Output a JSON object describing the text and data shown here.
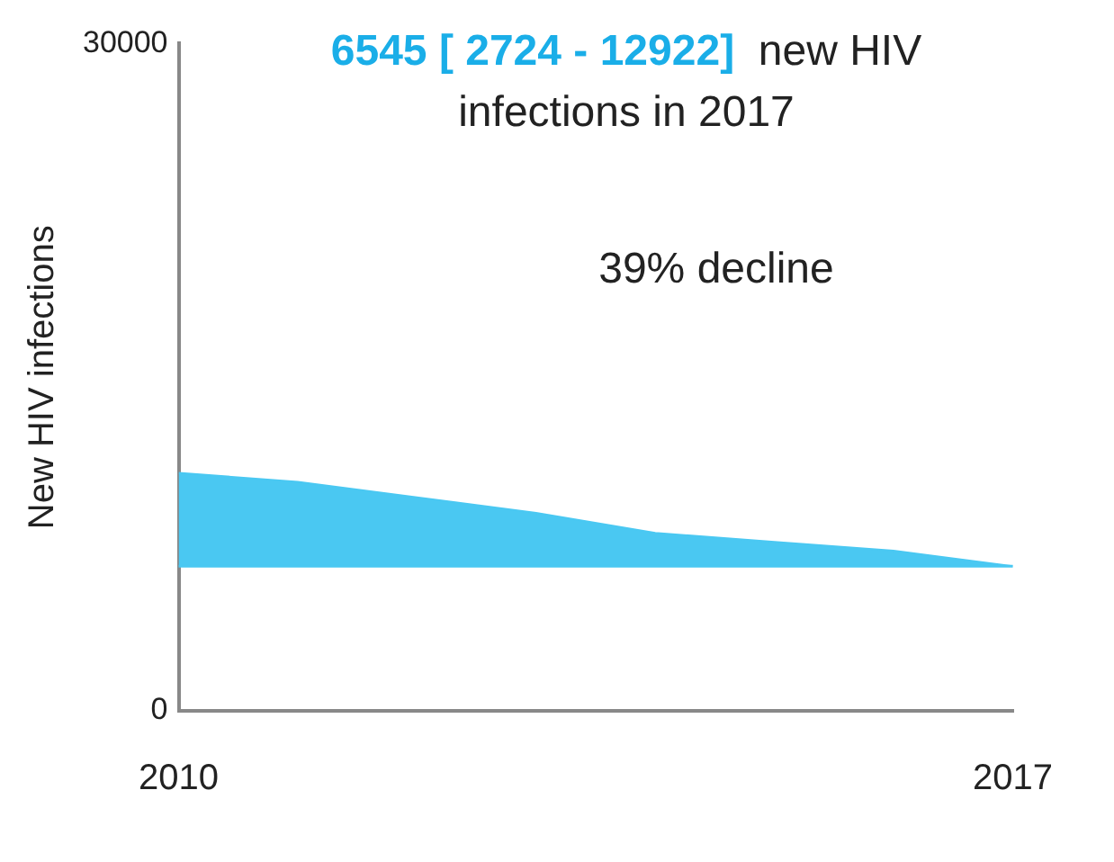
{
  "chart_data": {
    "type": "area",
    "title": "6545 [ 2724 - 12922]",
    "subtitle": "new HIV infections in 2017",
    "ylabel": "New HIV infections",
    "annotations": [
      "39% decline"
    ],
    "x": [
      2010,
      2011,
      2012,
      2013,
      2014,
      2015,
      2016,
      2017
    ],
    "series": [
      {
        "color": "#4ac8f2",
        "values": [
          10700,
          10300,
          9600,
          8900,
          8000,
          7600,
          7200,
          6500
        ]
      }
    ],
    "ref_lines": [
      {
        "axis": "y",
        "value": 6500,
        "color": "#4ac8f2"
      }
    ],
    "xlim": [
      2010,
      2017
    ],
    "xticks": [
      2010,
      2017
    ],
    "ylim": [
      0,
      30000
    ],
    "yticks": [
      0,
      30000
    ],
    "grid": false,
    "legend": false
  }
}
